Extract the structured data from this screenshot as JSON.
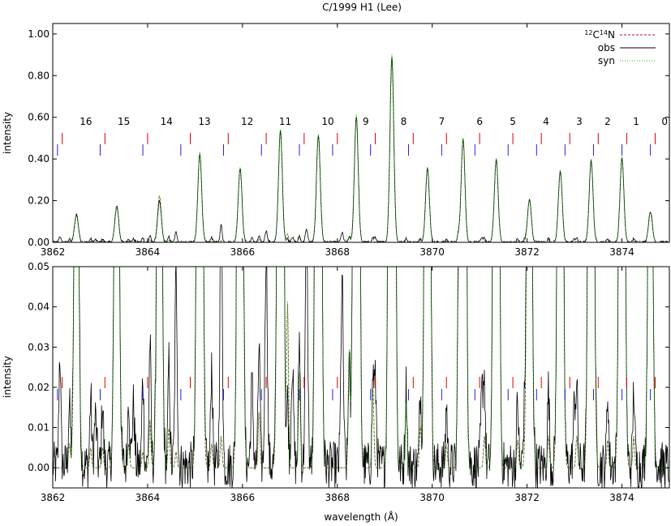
{
  "chart_data": [
    {
      "type": "line",
      "title": "C/1999 H1 (Lee)",
      "xlabel": "",
      "ylabel": "intensity",
      "xlim": [
        3862,
        3875
      ],
      "ylim": [
        0,
        1.05
      ],
      "xticks": [
        3862,
        3864,
        3866,
        3868,
        3870,
        3872,
        3874
      ],
      "xtick_labels": [
        "3862",
        "3864",
        "3866",
        "3868",
        "3870",
        "3872",
        "3874"
      ],
      "yticks": [
        0,
        0.2,
        0.4,
        0.6,
        0.8,
        1.0
      ],
      "ytick_labels": [
        "0.00",
        "0.20",
        "0.40",
        "0.60",
        "0.80",
        "1.00"
      ],
      "legend": {
        "placement": "top-right",
        "entries": [
          {
            "label_prefix": "12",
            "label_main": "C",
            "label_mid": "14",
            "label_end": "N",
            "color": "#c0004a",
            "style": "dashed"
          },
          {
            "label": "obs",
            "color": "#000000",
            "style": "solid"
          },
          {
            "label": "syn",
            "color": "#00c800",
            "style": "dotted"
          }
        ]
      },
      "line_labels": [
        "16",
        "15",
        "14",
        "13",
        "12",
        "11",
        "10",
        "9",
        "8",
        "7",
        "6",
        "5",
        "4",
        "3",
        "2",
        "1",
        "0"
      ],
      "line_label_x": [
        3862.7,
        3863.5,
        3864.4,
        3865.2,
        3866.1,
        3866.9,
        3867.8,
        3868.6,
        3869.4,
        3870.2,
        3871.0,
        3871.7,
        3872.4,
        3873.1,
        3873.7,
        3874.3,
        3874.9
      ],
      "red_markers": [
        3862.2,
        3863.1,
        3864.0,
        3864.9,
        3865.7,
        3866.5,
        3867.3,
        3868.0,
        3868.8,
        3869.6,
        3870.3,
        3871.0,
        3871.7,
        3872.3,
        3872.9,
        3873.5,
        3874.1,
        3874.7
      ],
      "blue_markers": [
        3862.1,
        3863.0,
        3863.9,
        3864.7,
        3865.6,
        3866.4,
        3867.2,
        3867.9,
        3868.7,
        3869.5,
        3870.2,
        3870.9,
        3871.6,
        3872.2,
        3872.8,
        3873.4,
        3874.0,
        3874.6
      ],
      "peaks": {
        "x": [
          3862.5,
          3863.35,
          3864.25,
          3865.1,
          3865.95,
          3866.8,
          3867.6,
          3868.4,
          3869.15,
          3869.9,
          3870.65,
          3871.35,
          3872.05,
          3872.7,
          3873.35,
          3874.0,
          3874.6
        ],
        "obs": [
          0.135,
          0.175,
          0.195,
          0.425,
          0.355,
          0.535,
          0.515,
          0.605,
          0.885,
          0.355,
          0.495,
          0.395,
          0.205,
          0.345,
          0.395,
          0.405,
          0.148
        ],
        "syn": [
          0.13,
          0.17,
          0.225,
          0.435,
          0.36,
          0.54,
          0.52,
          0.615,
          0.905,
          0.36,
          0.5,
          0.4,
          0.21,
          0.35,
          0.4,
          0.41,
          0.145
        ]
      },
      "minor_peaks": {
        "x": [
          3862.9,
          3863.7,
          3864.6,
          3865.55,
          3866.2,
          3866.5,
          3867.05,
          3867.35,
          3868.1,
          3868.8,
          3871.05,
          3871.95,
          3873.0
        ],
        "obs": [
          0.012,
          0.015,
          0.032,
          0.042,
          0.02,
          0.055,
          0.025,
          0.06,
          0.045,
          0.02,
          0.018,
          0.012,
          0.015
        ]
      }
    },
    {
      "type": "line",
      "title": "",
      "xlabel": "wavelength (Å)",
      "ylabel": "intensity",
      "xlim": [
        3862,
        3875
      ],
      "ylim": [
        -0.005,
        0.05
      ],
      "xticks": [
        3862,
        3864,
        3866,
        3868,
        3870,
        3872,
        3874
      ],
      "xtick_labels": [
        "3862",
        "3864",
        "3866",
        "3868",
        "3870",
        "3872",
        "3874"
      ],
      "yticks": [
        0,
        0.01,
        0.02,
        0.03,
        0.04,
        0.05
      ],
      "ytick_labels": [
        "0.00",
        "0.01",
        "0.02",
        "0.03",
        "0.04",
        "0.05"
      ],
      "red_markers": [
        3862.2,
        3863.1,
        3864.0,
        3864.9,
        3865.7,
        3866.5,
        3867.3,
        3868.0,
        3868.8,
        3869.6,
        3870.3,
        3871.0,
        3871.7,
        3872.3,
        3872.9,
        3873.5,
        3874.1,
        3874.7
      ],
      "blue_markers": [
        3862.1,
        3863.0,
        3863.9,
        3864.7,
        3865.6,
        3866.4,
        3867.2,
        3867.9,
        3868.7,
        3869.5,
        3870.2,
        3870.9,
        3871.6,
        3872.2,
        3872.8,
        3873.4,
        3874.0,
        3874.6
      ],
      "noise_features": {
        "x": [
          3862.15,
          3862.35,
          3862.8,
          3863.05,
          3863.6,
          3863.9,
          3864.05,
          3864.45,
          3864.6,
          3865.35,
          3865.55,
          3866.35,
          3866.95,
          3867.2,
          3868.25,
          3868.75,
          3869.45,
          3869.75,
          3870.3,
          3870.55,
          3871.1,
          3871.8,
          3872.45,
          3873.05,
          3873.7,
          3874.25
        ],
        "obs": [
          0.028,
          0.015,
          0.017,
          0.016,
          0.018,
          0.022,
          0.031,
          0.026,
          0.016,
          0.026,
          0.04,
          0.03,
          0.016,
          0.032,
          0.025,
          0.02,
          0.02,
          0.018,
          0.015,
          0.032,
          0.02,
          0.016,
          0.019,
          0.017,
          0.018,
          0.019
        ],
        "syn": [
          0.0,
          0.006,
          0.005,
          0.005,
          0.006,
          0.004,
          0.012,
          0.01,
          0.004,
          0.006,
          0.008,
          0.014,
          0.041,
          0.024,
          0.029,
          0.02,
          0.016,
          0.01,
          0.006,
          0.04,
          0.008,
          0.007,
          0.008,
          0.008,
          0.007,
          0.008
        ]
      }
    }
  ]
}
